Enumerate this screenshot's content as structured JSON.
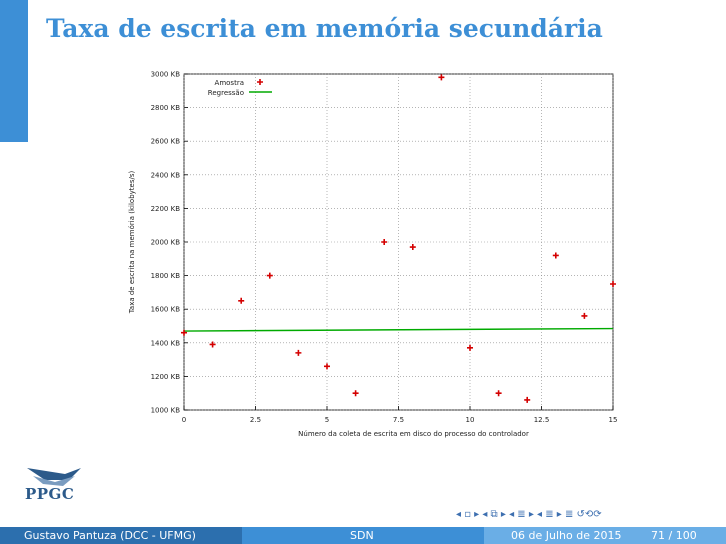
{
  "slide": {
    "title": "Taxa de escrita em memória secundária"
  },
  "logo": {
    "text": "PPGC"
  },
  "nav_icons": "◂ ▫ ▸  ◂ ⧉ ▸  ◂ ≣ ▸  ◂ ≣ ▸  ≣  ↺⟲⟳",
  "footer": {
    "author": "Gustavo Pantuza  (DCC - UFMG)",
    "topic": "SDN",
    "date": "06 de Julho de 2015",
    "page": "71 / 100"
  },
  "colors": {
    "accent": "#3d8fd6",
    "sample": "#d40000",
    "regression": "#00aa00"
  },
  "chart_data": {
    "type": "scatter",
    "xlabel": "Número da coleta de escrita em disco do processo do controlador",
    "ylabel": "Taxa de escrita na memória (kilobytes/s)",
    "xlim": [
      0,
      15
    ],
    "ylim": [
      1000,
      3000
    ],
    "x_ticks": [
      0,
      2.5,
      5,
      7.5,
      10,
      12.5,
      15
    ],
    "x_tick_labels": [
      "0",
      "2.5",
      "5",
      "7.5",
      "10",
      "12.5",
      "15"
    ],
    "y_ticks": [
      1000,
      1200,
      1400,
      1600,
      1800,
      2000,
      2200,
      2400,
      2600,
      2800,
      3000
    ],
    "y_tick_labels": [
      "1000 KB",
      "1200 KB",
      "1400 KB",
      "1600 KB",
      "1800 KB",
      "2000 KB",
      "2200 KB",
      "2400 KB",
      "2600 KB",
      "2800 KB",
      "3000 KB"
    ],
    "grid": true,
    "legend": "top-left",
    "series": [
      {
        "name": "Amostra",
        "marker": "plus",
        "x": [
          0,
          1,
          2,
          3,
          4,
          5,
          6,
          7,
          8,
          9,
          10,
          11,
          12,
          13,
          14,
          15
        ],
        "y": [
          1460,
          1390,
          1650,
          1800,
          1340,
          1260,
          1100,
          2000,
          1970,
          2980,
          1370,
          1100,
          1060,
          1920,
          1560,
          1750
        ]
      },
      {
        "name": "Regressão",
        "type": "line",
        "x": [
          0,
          15
        ],
        "y": [
          1470,
          1485
        ]
      }
    ]
  }
}
